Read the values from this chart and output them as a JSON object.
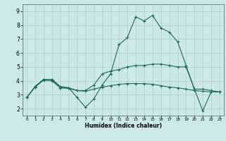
{
  "xlabel": "Humidex (Indice chaleur)",
  "background_color": "#cce8e8",
  "grid_color": "#aacccc",
  "line_color": "#1a6b5a",
  "xlim": [
    -0.5,
    23.5
  ],
  "ylim": [
    1.5,
    9.5
  ],
  "xticks": [
    0,
    1,
    2,
    3,
    4,
    5,
    6,
    7,
    8,
    9,
    10,
    11,
    12,
    13,
    14,
    15,
    16,
    17,
    18,
    19,
    20,
    21,
    22,
    23
  ],
  "yticks": [
    2,
    3,
    4,
    5,
    6,
    7,
    8,
    9
  ],
  "line1_x": [
    0,
    1,
    2,
    3,
    4,
    5,
    6,
    7,
    8,
    9,
    10,
    11,
    12,
    13,
    14,
    15,
    16,
    17,
    18,
    19,
    20,
    21,
    22,
    23
  ],
  "line1_y": [
    2.8,
    3.6,
    4.1,
    4.1,
    3.6,
    3.5,
    2.8,
    2.1,
    2.7,
    3.7,
    4.5,
    6.6,
    7.1,
    8.6,
    8.3,
    8.7,
    7.8,
    7.5,
    6.8,
    5.1,
    3.4,
    1.85,
    3.2,
    3.2
  ],
  "line2_x": [
    0,
    1,
    2,
    3,
    4,
    5,
    6,
    7,
    8,
    9,
    10,
    11,
    12,
    13,
    14,
    15,
    16,
    17,
    18,
    19,
    20,
    21,
    22,
    23
  ],
  "line2_y": [
    2.8,
    3.6,
    4.1,
    4.1,
    3.5,
    3.5,
    3.3,
    3.3,
    3.7,
    4.5,
    4.7,
    4.8,
    5.0,
    5.1,
    5.1,
    5.2,
    5.2,
    5.1,
    5.0,
    5.0,
    3.4,
    3.4,
    3.3,
    3.2
  ],
  "line3_x": [
    0,
    1,
    2,
    3,
    4,
    5,
    6,
    7,
    8,
    9,
    10,
    11,
    12,
    13,
    14,
    15,
    16,
    17,
    18,
    19,
    20,
    21,
    22,
    23
  ],
  "line3_y": [
    2.8,
    3.55,
    4.05,
    4.0,
    3.5,
    3.45,
    3.3,
    3.25,
    3.4,
    3.55,
    3.65,
    3.75,
    3.8,
    3.8,
    3.8,
    3.75,
    3.65,
    3.55,
    3.5,
    3.4,
    3.3,
    3.25,
    3.2,
    3.2
  ]
}
